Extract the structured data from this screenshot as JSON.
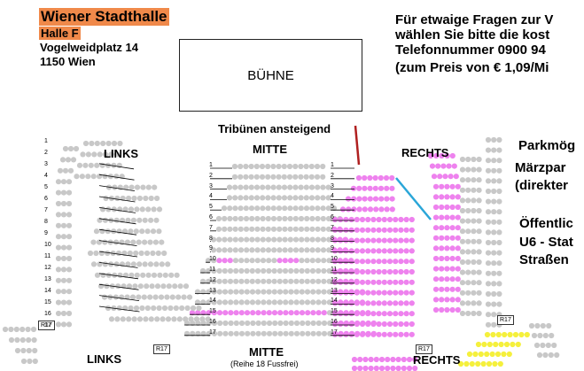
{
  "venue": {
    "name": "Wiener Stadthalle",
    "hall": "Halle F",
    "street": "Vogelweidplatz 14",
    "city": "1150 Wien"
  },
  "info_lines": [
    "Für etwaige Fragen zur V",
    "wählen Sie bitte die kost",
    "Telefonnummer 0900 94",
    "(zum Preis von € 1,09/Mi"
  ],
  "stage_label": "BÜHNE",
  "tribune_label": "Tribünen ansteigend",
  "section_labels": {
    "left_top": "LINKS",
    "middle_top": "MITTE",
    "right_top": "RECHTS",
    "left_bottom": "LINKS",
    "middle_bottom": "MITTE",
    "middle_note": "(Reihe 18 Fussfrei)",
    "right_bottom": "RECHTS"
  },
  "row_markers": {
    "left_outer": "R17",
    "left_inner": "R17",
    "right_inner": "R17",
    "right_outer": "R17"
  },
  "side_lines_1": [
    "Parkmög",
    "Märzpar",
    "(direkter"
  ],
  "side_lines_2": [
    "Öffentlic",
    "U6 - Stat",
    "Straßen"
  ],
  "row_numbers": [
    "1",
    "2",
    "3",
    "4",
    "5",
    "6",
    "7",
    "8",
    "9",
    "10",
    "11",
    "12",
    "13",
    "14",
    "15",
    "16",
    "17"
  ],
  "middle_row_numbers": [
    "1",
    "2",
    "3",
    "4",
    "5",
    "6",
    "7",
    "8",
    "9",
    "10",
    "11",
    "12",
    "13",
    "14",
    "15",
    "16",
    "17"
  ],
  "colors": {
    "available_seat": "#c8c8c8",
    "selected_seat": "#ee82ee",
    "other_seat": "#f5f03c",
    "venue_highlight": "#f0894a",
    "stage_border": "#222222",
    "tribune_line": "#b02020",
    "aisle_line": "#2aa6d8"
  }
}
